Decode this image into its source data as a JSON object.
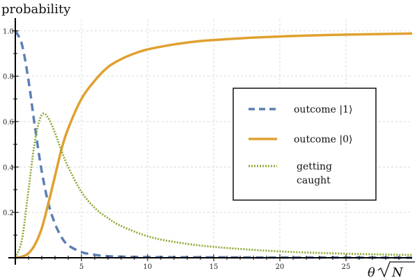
{
  "chart_data": {
    "type": "line",
    "title": "",
    "ylabel": "probability",
    "xlabel_main": "θ",
    "xlabel_radicand": "N",
    "xlim": [
      0,
      30
    ],
    "ylim": [
      0,
      1.05
    ],
    "xticks": [
      5,
      10,
      15,
      20,
      25
    ],
    "yticks": [
      0.2,
      0.4,
      0.6,
      0.8,
      1.0
    ],
    "xtick_labels": [
      "5",
      "10",
      "15",
      "20",
      "25"
    ],
    "ytick_labels": [
      "0.2",
      "0.4",
      "0.6",
      "0.8",
      "1.0"
    ],
    "grid": true,
    "legend_position": "right",
    "series": [
      {
        "name": "outcome |1⟩",
        "style": "dashed",
        "color": "#5b7fb6",
        "x": [
          0,
          0.5,
          1,
          1.5,
          2,
          2.5,
          3,
          3.5,
          4,
          5,
          6,
          7,
          8,
          10,
          15,
          20,
          25,
          30
        ],
        "y": [
          1.0,
          0.94,
          0.78,
          0.57,
          0.38,
          0.24,
          0.15,
          0.09,
          0.055,
          0.025,
          0.013,
          0.007,
          0.005,
          0.003,
          0.002,
          0.001,
          0.001,
          0.0
        ]
      },
      {
        "name": "outcome |0⟩",
        "style": "solid",
        "color": "#e0a030",
        "x": [
          0,
          0.5,
          1,
          1.5,
          2,
          2.5,
          3,
          3.5,
          4,
          5,
          6,
          7,
          8,
          9,
          10,
          12,
          14,
          16,
          18,
          20,
          22,
          25,
          28,
          30
        ],
        "y": [
          0.0,
          0.005,
          0.02,
          0.06,
          0.13,
          0.24,
          0.36,
          0.48,
          0.57,
          0.7,
          0.78,
          0.84,
          0.875,
          0.9,
          0.918,
          0.94,
          0.955,
          0.963,
          0.97,
          0.975,
          0.979,
          0.983,
          0.986,
          0.988
        ]
      },
      {
        "name": "getting caught",
        "name_lines": [
          "getting",
          "caught"
        ],
        "style": "dotted",
        "color": "#8aa832",
        "x": [
          0,
          0.5,
          1,
          1.5,
          2,
          2.5,
          3,
          3.5,
          4,
          5,
          6,
          7,
          8,
          10,
          12,
          15,
          20,
          25,
          30
        ],
        "y": [
          0.0,
          0.08,
          0.3,
          0.52,
          0.63,
          0.615,
          0.55,
          0.47,
          0.4,
          0.29,
          0.22,
          0.175,
          0.14,
          0.095,
          0.07,
          0.048,
          0.028,
          0.018,
          0.012
        ]
      }
    ]
  }
}
